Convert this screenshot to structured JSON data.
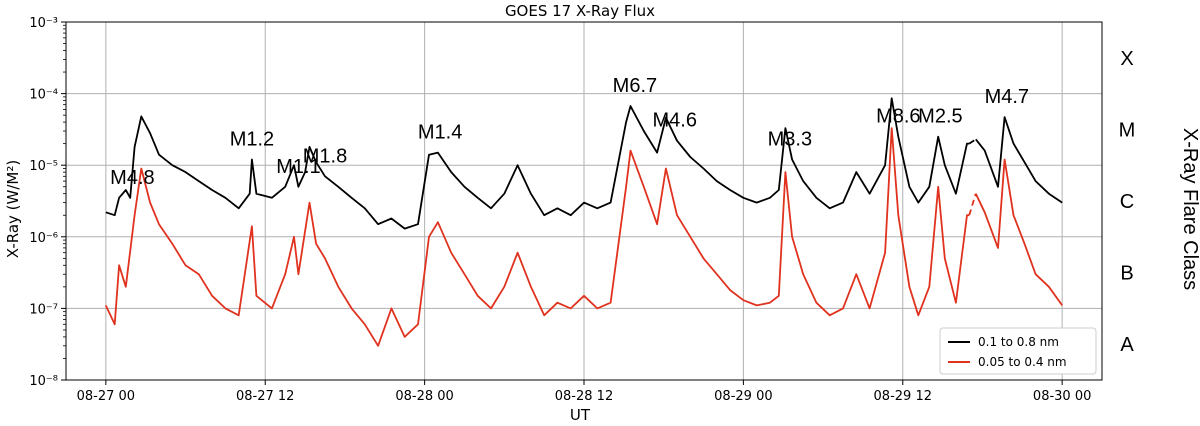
{
  "chart_data": {
    "type": "line",
    "title": "GOES 17 X-Ray Flux",
    "xlabel": "UT",
    "ylabel": "X-Ray (W/M²)",
    "y_scale": "log",
    "ylim": [
      1e-08,
      0.001
    ],
    "xlim": [
      "2022-08-26 21:00",
      "2022-08-30 03:00"
    ],
    "grid": true,
    "legend_position": "bottom-right",
    "x_ticks": [
      "08-27 00",
      "08-27 12",
      "08-28 00",
      "08-28 12",
      "08-29 00",
      "08-29 12",
      "08-30 00"
    ],
    "y_ticks": [
      "10⁻⁸",
      "10⁻⁷",
      "10⁻⁶",
      "10⁻⁵",
      "10⁻⁴",
      "10⁻³"
    ],
    "right_axis": {
      "title": "X-Ray Flare Class",
      "classes": [
        "X",
        "M",
        "C",
        "B",
        "A"
      ]
    },
    "flare_annotations": [
      {
        "label": "M4.8",
        "time": "2022-08-27 02:00"
      },
      {
        "label": "M1.2",
        "time": "2022-08-27 11:00"
      },
      {
        "label": "M1.1",
        "time": "2022-08-27 14:30"
      },
      {
        "label": "M1.8",
        "time": "2022-08-27 16:30"
      },
      {
        "label": "M1.4",
        "time": "2022-08-28 01:10"
      },
      {
        "label": "M6.7",
        "time": "2022-08-28 15:50"
      },
      {
        "label": "M4.6",
        "time": "2022-08-28 18:50"
      },
      {
        "label": "M3.3",
        "time": "2022-08-29 03:30"
      },
      {
        "label": "M8.6",
        "time": "2022-08-29 11:40"
      },
      {
        "label": "M2.5",
        "time": "2022-08-29 14:50"
      },
      {
        "label": "M4.7",
        "time": "2022-08-29 19:50"
      }
    ],
    "series": [
      {
        "name": "0.1 to 0.8 nm",
        "color": "#000000",
        "points": [
          [
            "2022-08-27 00:00",
            2.2e-06
          ],
          [
            "2022-08-27 00:40",
            2e-06
          ],
          [
            "2022-08-27 01:00",
            3.5e-06
          ],
          [
            "2022-08-27 01:30",
            4.5e-06
          ],
          [
            "2022-08-27 01:50",
            3.5e-06
          ],
          [
            "2022-08-27 02:10",
            1.8e-05
          ],
          [
            "2022-08-27 02:40",
            4.8e-05
          ],
          [
            "2022-08-27 03:20",
            2.8e-05
          ],
          [
            "2022-08-27 04:00",
            1.4e-05
          ],
          [
            "2022-08-27 05:00",
            1e-05
          ],
          [
            "2022-08-27 06:00",
            8e-06
          ],
          [
            "2022-08-27 07:00",
            6e-06
          ],
          [
            "2022-08-27 08:00",
            4.5e-06
          ],
          [
            "2022-08-27 09:00",
            3.5e-06
          ],
          [
            "2022-08-27 10:00",
            2.5e-06
          ],
          [
            "2022-08-27 10:50",
            4e-06
          ],
          [
            "2022-08-27 11:00",
            1.2e-05
          ],
          [
            "2022-08-27 11:20",
            4e-06
          ],
          [
            "2022-08-27 12:30",
            3.5e-06
          ],
          [
            "2022-08-27 13:30",
            5e-06
          ],
          [
            "2022-08-27 14:10",
            1e-05
          ],
          [
            "2022-08-27 14:30",
            5e-06
          ],
          [
            "2022-08-27 15:00",
            8e-06
          ],
          [
            "2022-08-27 15:20",
            1.8e-05
          ],
          [
            "2022-08-27 15:50",
            1.1e-05
          ],
          [
            "2022-08-27 16:30",
            7e-06
          ],
          [
            "2022-08-27 17:30",
            5e-06
          ],
          [
            "2022-08-27 18:30",
            3.5e-06
          ],
          [
            "2022-08-27 19:30",
            2.5e-06
          ],
          [
            "2022-08-27 20:30",
            1.5e-06
          ],
          [
            "2022-08-27 21:30",
            1.8e-06
          ],
          [
            "2022-08-27 22:30",
            1.3e-06
          ],
          [
            "2022-08-27 23:30",
            1.5e-06
          ],
          [
            "2022-08-28 00:20",
            1.4e-05
          ],
          [
            "2022-08-28 01:00",
            1.5e-05
          ],
          [
            "2022-08-28 02:00",
            8e-06
          ],
          [
            "2022-08-28 03:00",
            5e-06
          ],
          [
            "2022-08-28 04:00",
            3.5e-06
          ],
          [
            "2022-08-28 05:00",
            2.5e-06
          ],
          [
            "2022-08-28 06:00",
            4e-06
          ],
          [
            "2022-08-28 07:00",
            1e-05
          ],
          [
            "2022-08-28 08:00",
            4e-06
          ],
          [
            "2022-08-28 09:00",
            2e-06
          ],
          [
            "2022-08-28 10:00",
            2.5e-06
          ],
          [
            "2022-08-28 11:00",
            2e-06
          ],
          [
            "2022-08-28 12:00",
            3e-06
          ],
          [
            "2022-08-28 13:00",
            2.5e-06
          ],
          [
            "2022-08-28 14:00",
            3e-06
          ],
          [
            "2022-08-28 15:10",
            4e-05
          ],
          [
            "2022-08-28 15:30",
            6.7e-05
          ],
          [
            "2022-08-28 16:30",
            3e-05
          ],
          [
            "2022-08-28 17:30",
            1.5e-05
          ],
          [
            "2022-08-28 18:10",
            4.6e-05
          ],
          [
            "2022-08-28 19:00",
            2.2e-05
          ],
          [
            "2022-08-28 20:00",
            1.3e-05
          ],
          [
            "2022-08-28 21:00",
            9e-06
          ],
          [
            "2022-08-28 22:00",
            6e-06
          ],
          [
            "2022-08-28 23:00",
            4.5e-06
          ],
          [
            "2022-08-29 00:00",
            3.5e-06
          ],
          [
            "2022-08-29 01:00",
            3e-06
          ],
          [
            "2022-08-29 02:00",
            3.5e-06
          ],
          [
            "2022-08-29 02:40",
            4.5e-06
          ],
          [
            "2022-08-29 03:10",
            3.3e-05
          ],
          [
            "2022-08-29 03:40",
            1.2e-05
          ],
          [
            "2022-08-29 04:30",
            6e-06
          ],
          [
            "2022-08-29 05:30",
            3.5e-06
          ],
          [
            "2022-08-29 06:30",
            2.5e-06
          ],
          [
            "2022-08-29 07:30",
            3e-06
          ],
          [
            "2022-08-29 08:30",
            8e-06
          ],
          [
            "2022-08-29 09:30",
            4e-06
          ],
          [
            "2022-08-29 10:40",
            1e-05
          ],
          [
            "2022-08-29 11:10",
            8.6e-05
          ],
          [
            "2022-08-29 11:40",
            2.5e-05
          ],
          [
            "2022-08-29 12:30",
            5e-06
          ],
          [
            "2022-08-29 13:10",
            3e-06
          ],
          [
            "2022-08-29 14:00",
            5e-06
          ],
          [
            "2022-08-29 14:40",
            2.5e-05
          ],
          [
            "2022-08-29 15:10",
            1e-05
          ],
          [
            "2022-08-29 16:00",
            4e-06
          ],
          [
            "2022-08-29 16:50",
            2e-05
          ],
          [
            "2022-08-29 17:00",
            2e-05
          ]
        ],
        "points_after_gap": [
          [
            "2022-08-29 17:30",
            2.3e-05
          ],
          [
            "2022-08-29 18:10",
            1.6e-05
          ],
          [
            "2022-08-29 19:10",
            5e-06
          ],
          [
            "2022-08-29 19:40",
            4.7e-05
          ],
          [
            "2022-08-29 20:20",
            2e-05
          ],
          [
            "2022-08-29 21:10",
            1.1e-05
          ],
          [
            "2022-08-29 22:00",
            6e-06
          ],
          [
            "2022-08-29 23:00",
            4e-06
          ],
          [
            "2022-08-30 00:00",
            3e-06
          ]
        ]
      },
      {
        "name": "0.05 to 0.4 nm",
        "color": "#e0321e",
        "points": [
          [
            "2022-08-27 00:00",
            1.1e-07
          ],
          [
            "2022-08-27 00:40",
            6e-08
          ],
          [
            "2022-08-27 01:00",
            4e-07
          ],
          [
            "2022-08-27 01:30",
            2e-07
          ],
          [
            "2022-08-27 02:10",
            2e-06
          ],
          [
            "2022-08-27 02:40",
            9e-06
          ],
          [
            "2022-08-27 03:20",
            3e-06
          ],
          [
            "2022-08-27 04:00",
            1.5e-06
          ],
          [
            "2022-08-27 05:00",
            8e-07
          ],
          [
            "2022-08-27 06:00",
            4e-07
          ],
          [
            "2022-08-27 07:00",
            3e-07
          ],
          [
            "2022-08-27 08:00",
            1.5e-07
          ],
          [
            "2022-08-27 09:00",
            1e-07
          ],
          [
            "2022-08-27 10:00",
            8e-08
          ],
          [
            "2022-08-27 11:00",
            1.4e-06
          ],
          [
            "2022-08-27 11:20",
            1.5e-07
          ],
          [
            "2022-08-27 12:30",
            1e-07
          ],
          [
            "2022-08-27 13:30",
            3e-07
          ],
          [
            "2022-08-27 14:10",
            1e-06
          ],
          [
            "2022-08-27 14:30",
            3e-07
          ],
          [
            "2022-08-27 15:20",
            3e-06
          ],
          [
            "2022-08-27 15:50",
            8e-07
          ],
          [
            "2022-08-27 16:30",
            5e-07
          ],
          [
            "2022-08-27 17:30",
            2e-07
          ],
          [
            "2022-08-27 18:30",
            1e-07
          ],
          [
            "2022-08-27 19:30",
            6e-08
          ],
          [
            "2022-08-27 20:30",
            3e-08
          ],
          [
            "2022-08-27 21:30",
            1e-07
          ],
          [
            "2022-08-27 22:30",
            4e-08
          ],
          [
            "2022-08-27 23:30",
            6e-08
          ],
          [
            "2022-08-28 00:20",
            1e-06
          ],
          [
            "2022-08-28 01:00",
            1.6e-06
          ],
          [
            "2022-08-28 02:00",
            6e-07
          ],
          [
            "2022-08-28 03:00",
            3e-07
          ],
          [
            "2022-08-28 04:00",
            1.5e-07
          ],
          [
            "2022-08-28 05:00",
            1e-07
          ],
          [
            "2022-08-28 06:00",
            2e-07
          ],
          [
            "2022-08-28 07:00",
            6e-07
          ],
          [
            "2022-08-28 08:00",
            2e-07
          ],
          [
            "2022-08-28 09:00",
            8e-08
          ],
          [
            "2022-08-28 10:00",
            1.2e-07
          ],
          [
            "2022-08-28 11:00",
            1e-07
          ],
          [
            "2022-08-28 12:00",
            1.5e-07
          ],
          [
            "2022-08-28 13:00",
            1e-07
          ],
          [
            "2022-08-28 14:00",
            1.2e-07
          ],
          [
            "2022-08-28 15:10",
            5e-06
          ],
          [
            "2022-08-28 15:30",
            1.6e-05
          ],
          [
            "2022-08-28 16:30",
            5e-06
          ],
          [
            "2022-08-28 17:30",
            1.5e-06
          ],
          [
            "2022-08-28 18:10",
            9e-06
          ],
          [
            "2022-08-28 19:00",
            2e-06
          ],
          [
            "2022-08-28 20:00",
            1e-06
          ],
          [
            "2022-08-28 21:00",
            5e-07
          ],
          [
            "2022-08-28 22:00",
            3e-07
          ],
          [
            "2022-08-28 23:00",
            1.8e-07
          ],
          [
            "2022-08-29 00:00",
            1.3e-07
          ],
          [
            "2022-08-29 01:00",
            1.1e-07
          ],
          [
            "2022-08-29 02:00",
            1.2e-07
          ],
          [
            "2022-08-29 02:40",
            1.5e-07
          ],
          [
            "2022-08-29 03:10",
            8e-06
          ],
          [
            "2022-08-29 03:40",
            1e-06
          ],
          [
            "2022-08-29 04:30",
            3e-07
          ],
          [
            "2022-08-29 05:30",
            1.2e-07
          ],
          [
            "2022-08-29 06:30",
            8e-08
          ],
          [
            "2022-08-29 07:30",
            1e-07
          ],
          [
            "2022-08-29 08:30",
            3e-07
          ],
          [
            "2022-08-29 09:30",
            1e-07
          ],
          [
            "2022-08-29 10:40",
            6e-07
          ],
          [
            "2022-08-29 11:10",
            3.3e-05
          ],
          [
            "2022-08-29 11:40",
            2e-06
          ],
          [
            "2022-08-29 12:30",
            2e-07
          ],
          [
            "2022-08-29 13:10",
            8e-08
          ],
          [
            "2022-08-29 14:00",
            2e-07
          ],
          [
            "2022-08-29 14:40",
            5e-06
          ],
          [
            "2022-08-29 15:10",
            5e-07
          ],
          [
            "2022-08-29 16:00",
            1.2e-07
          ],
          [
            "2022-08-29 16:50",
            2e-06
          ],
          [
            "2022-08-29 17:00",
            2e-06
          ]
        ],
        "points_after_gap": [
          [
            "2022-08-29 17:30",
            4e-06
          ],
          [
            "2022-08-29 18:10",
            2.2e-06
          ],
          [
            "2022-08-29 19:10",
            7e-07
          ],
          [
            "2022-08-29 19:40",
            1.2e-05
          ],
          [
            "2022-08-29 20:20",
            2e-06
          ],
          [
            "2022-08-29 21:10",
            8e-07
          ],
          [
            "2022-08-29 22:00",
            3e-07
          ],
          [
            "2022-08-29 23:00",
            2e-07
          ],
          [
            "2022-08-30 00:00",
            1.1e-07
          ]
        ]
      }
    ]
  }
}
